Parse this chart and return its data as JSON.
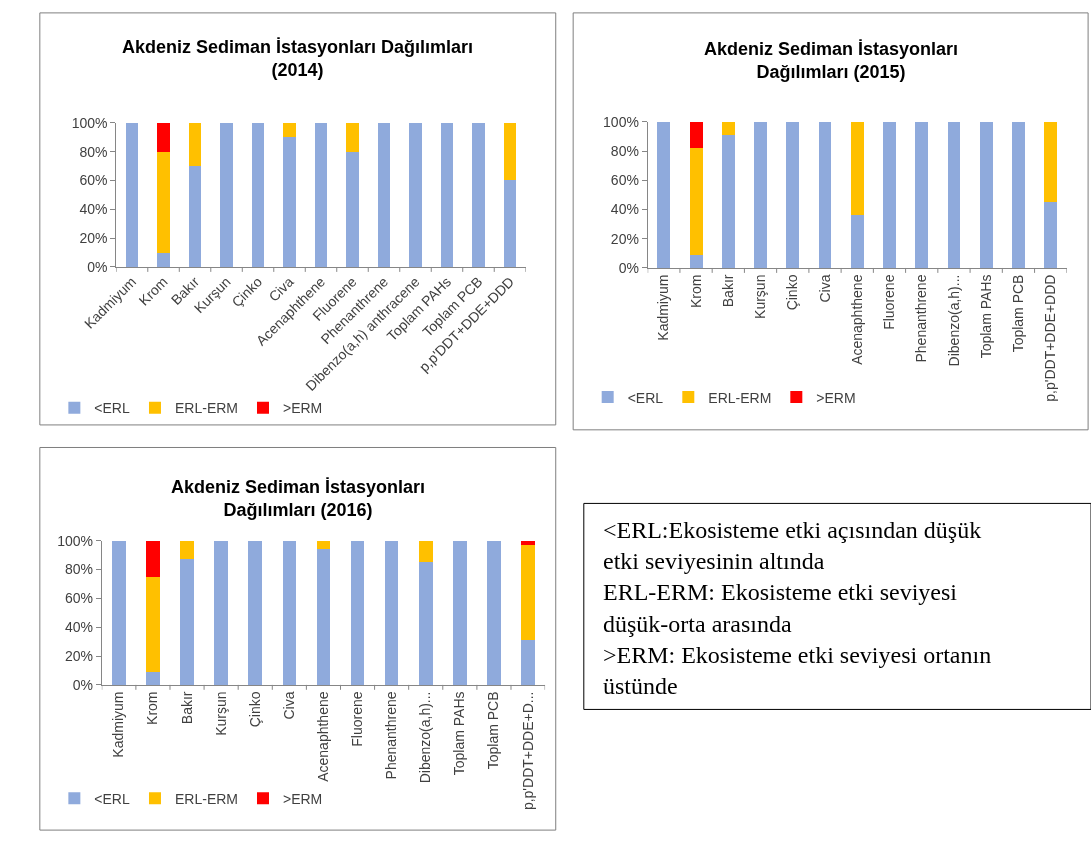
{
  "chart_data": [
    {
      "type": "bar",
      "title": "Akdeniz Sediman İstasyonları Dağılımları (2014)",
      "categories": [
        "Kadmiyum",
        "Krom",
        "Bakır",
        "Kurşun",
        "Çinko",
        "Civa",
        "Acenaphthene",
        "Fluorene",
        "Phenanthrene",
        "Dibenzo(a,h) anthracene",
        "Toplam PAHs",
        "Toplam PCB",
        "p,p'DDT+DDE+DDD"
      ],
      "stacked": true,
      "ylim": [
        0,
        100
      ],
      "yticks": [
        {
          "value": 0,
          "label": "0%"
        },
        {
          "value": 20,
          "label": "20%"
        },
        {
          "value": 40,
          "label": "40%"
        },
        {
          "value": 60,
          "label": "60%"
        },
        {
          "value": 80,
          "label": "80%"
        },
        {
          "value": 100,
          "label": "100%"
        }
      ],
      "legend": "bottom",
      "series": [
        {
          "name": "<ERL",
          "color": "#8faadc",
          "values": [
            100,
            10,
            70,
            100,
            100,
            90,
            100,
            80,
            100,
            100,
            100,
            100,
            60
          ]
        },
        {
          "name": "ERL-ERM",
          "color": "#ffc000",
          "values": [
            0,
            70,
            30,
            0,
            0,
            10,
            0,
            20,
            0,
            0,
            0,
            0,
            40
          ]
        },
        {
          "name": ">ERM",
          "color": "#ff0000",
          "values": [
            0,
            20,
            0,
            0,
            0,
            0,
            0,
            0,
            0,
            0,
            0,
            0,
            0
          ]
        }
      ]
    },
    {
      "type": "bar",
      "title": "Akdeniz Sediman İstasyonları Dağılımları (2015)",
      "categories": [
        "Kadmiyum",
        "Krom",
        "Bakır",
        "Kurşun",
        "Çinko",
        "Civa",
        "Acenaphthene",
        "Fluorene",
        "Phenanthrene",
        "Dibenzo(a,h)...",
        "Toplam PAHs",
        "Toplam PCB",
        "p,p'DDT+DDE+DDD"
      ],
      "stacked": true,
      "ylim": [
        0,
        100
      ],
      "yticks": [
        {
          "value": 0,
          "label": "0%"
        },
        {
          "value": 20,
          "label": "20%"
        },
        {
          "value": 40,
          "label": "40%"
        },
        {
          "value": 60,
          "label": "60%"
        },
        {
          "value": 80,
          "label": "80%"
        },
        {
          "value": 100,
          "label": "100%"
        }
      ],
      "legend": "bottom",
      "series": [
        {
          "name": "<ERL",
          "color": "#8faadc",
          "values": [
            100,
            9,
            91,
            100,
            100,
            100,
            36,
            100,
            100,
            100,
            100,
            100,
            45
          ]
        },
        {
          "name": "ERL-ERM",
          "color": "#ffc000",
          "values": [
            0,
            73,
            9,
            0,
            0,
            0,
            64,
            0,
            0,
            0,
            0,
            0,
            55
          ]
        },
        {
          "name": ">ERM",
          "color": "#ff0000",
          "values": [
            0,
            18,
            0,
            0,
            0,
            0,
            0,
            0,
            0,
            0,
            0,
            0,
            0
          ]
        }
      ]
    },
    {
      "type": "bar",
      "title": "Akdeniz Sediman İstasyonları Dağılımları (2016)",
      "categories": [
        "Kadmiyum",
        "Krom",
        "Bakır",
        "Kurşun",
        "Çinko",
        "Civa",
        "Acenaphthene",
        "Fluorene",
        "Phenanthrene",
        "Dibenzo(a,h)...",
        "Toplam PAHs",
        "Toplam PCB",
        "p,p'DDT+DDE+D..."
      ],
      "stacked": true,
      "ylim": [
        0,
        100
      ],
      "yticks": [
        {
          "value": 0,
          "label": "0%"
        },
        {
          "value": 20,
          "label": "20%"
        },
        {
          "value": 40,
          "label": "40%"
        },
        {
          "value": 60,
          "label": "60%"
        },
        {
          "value": 80,
          "label": "80%"
        },
        {
          "value": 100,
          "label": "100%"
        }
      ],
      "legend": "bottom",
      "series": [
        {
          "name": "<ERL",
          "color": "#8faadc",
          "values": [
            100,
            9,
            87,
            100,
            100,
            100,
            94,
            100,
            100,
            85,
            100,
            100,
            31
          ]
        },
        {
          "name": "ERL-ERM",
          "color": "#ffc000",
          "values": [
            0,
            66,
            13,
            0,
            0,
            0,
            6,
            0,
            0,
            15,
            0,
            0,
            66
          ]
        },
        {
          "name": ">ERM",
          "color": "#ff0000",
          "values": [
            0,
            25,
            0,
            0,
            0,
            0,
            0,
            0,
            0,
            0,
            0,
            0,
            3
          ]
        }
      ]
    },
    {
      "type": "other",
      "annotations": [
        "<ERL:Ekosisteme etki açısından düşük etki seviyesinin altında",
        "ERL-ERM: Ekosisteme etki seviyesi düşük-orta arasında",
        ">ERM: Ekosisteme etki seviyesi ortanın üstünde"
      ]
    }
  ]
}
